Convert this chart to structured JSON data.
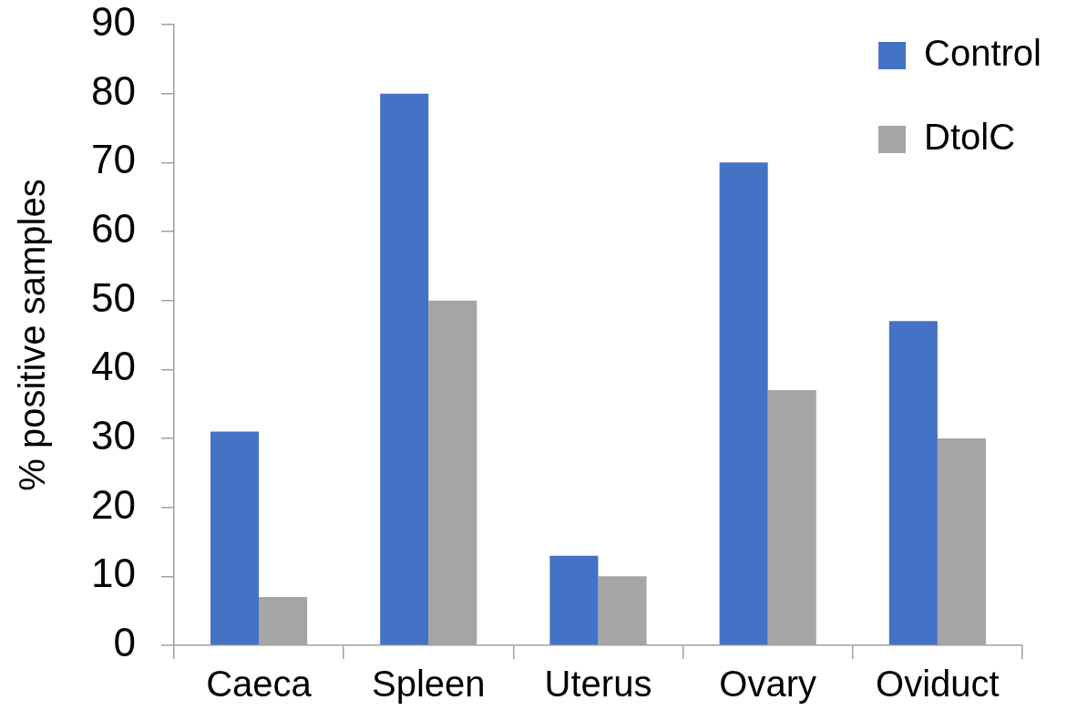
{
  "chart_data": {
    "type": "bar",
    "ylabel": "% positive samples",
    "categories": [
      "Caeca",
      "Spleen",
      "Uterus",
      "Ovary",
      "Oviduct"
    ],
    "series": [
      {
        "name": "Control",
        "color": "#4472c4",
        "values": [
          31,
          80,
          13,
          70,
          47
        ]
      },
      {
        "name": "DtolC",
        "color": "#a5a5a5",
        "values": [
          7,
          50,
          10,
          37,
          30
        ]
      }
    ],
    "ylim": [
      0,
      90
    ],
    "yticks": [
      0,
      10,
      20,
      30,
      40,
      50,
      60,
      70,
      80,
      90
    ],
    "legend": "top right"
  }
}
